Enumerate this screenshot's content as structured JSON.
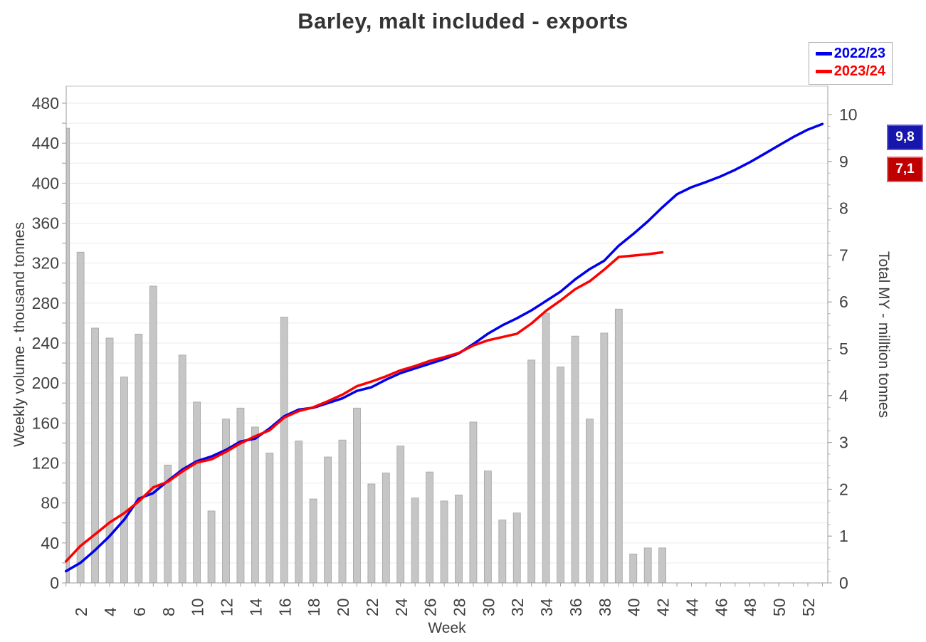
{
  "title": "Barley, malt included - exports",
  "badges": {
    "items": [
      {
        "series": "2022/23",
        "value": "9,8",
        "bg": "#1616AD",
        "border": "#5c5cd0"
      },
      {
        "series": "2023/24",
        "value": "7,1",
        "bg": "#C00000",
        "border": "#d96666"
      }
    ]
  },
  "chart_data": {
    "type": "combo-bar-line",
    "title": "Barley, malt included - exports",
    "x": {
      "label": "Week",
      "range": [
        1,
        53
      ],
      "tick_labels": [
        2,
        4,
        6,
        8,
        10,
        12,
        14,
        16,
        18,
        20,
        22,
        24,
        26,
        28,
        30,
        32,
        34,
        36,
        38,
        40,
        42,
        44,
        46,
        48,
        50,
        52
      ]
    },
    "left_axis": {
      "title": "Weekly volume - thousand tonnes",
      "min": 0,
      "max": 480,
      "label_step": 40,
      "grid_step": 20
    },
    "right_axis": {
      "title": "Total MY - milltion tonnes",
      "min": 0,
      "max": 10,
      "label_step": 1,
      "minor_tick_step": 0.25
    },
    "grid": "horizontal",
    "legend_position": "top-right",
    "bars": {
      "name": "2023/24 weekly volume",
      "axis": "left",
      "unit": "thousand tonnes",
      "color": "#c6c6c6",
      "border_color": "#a4a4a4",
      "start_week": 1,
      "values": [
        455,
        331,
        255,
        245,
        206,
        249,
        297,
        118,
        228,
        181,
        72,
        164,
        175,
        156,
        130,
        266,
        142,
        84,
        126,
        143,
        175,
        99,
        110,
        137,
        85,
        111,
        82,
        88,
        161,
        112,
        63,
        70,
        223,
        270,
        216,
        247,
        164,
        250,
        274,
        29,
        35,
        35
      ]
    },
    "lines": [
      {
        "name": "2022/23",
        "axis": "right",
        "unit": "million tonnes",
        "color": "#0000EE",
        "start_week": 1,
        "values": [
          0.25,
          0.43,
          0.7,
          1.0,
          1.35,
          1.8,
          1.92,
          2.18,
          2.42,
          2.6,
          2.7,
          2.84,
          3.02,
          3.08,
          3.3,
          3.56,
          3.7,
          3.74,
          3.84,
          3.94,
          4.1,
          4.18,
          4.34,
          4.48,
          4.58,
          4.68,
          4.78,
          4.9,
          5.1,
          5.32,
          5.5,
          5.65,
          5.82,
          6.02,
          6.22,
          6.48,
          6.7,
          6.88,
          7.2,
          7.45,
          7.72,
          8.02,
          8.3,
          8.45,
          8.56,
          8.68,
          8.82,
          8.98,
          9.16,
          9.34,
          9.52,
          9.68,
          9.8
        ]
      },
      {
        "name": "2023/24",
        "axis": "right",
        "unit": "million tonnes",
        "color": "#FF0000",
        "start_week": 1,
        "values": [
          0.46,
          0.79,
          1.04,
          1.29,
          1.49,
          1.74,
          2.04,
          2.16,
          2.38,
          2.57,
          2.64,
          2.8,
          2.98,
          3.13,
          3.26,
          3.53,
          3.67,
          3.75,
          3.88,
          4.02,
          4.2,
          4.3,
          4.41,
          4.54,
          4.63,
          4.74,
          4.82,
          4.91,
          5.07,
          5.18,
          5.25,
          5.32,
          5.54,
          5.81,
          6.03,
          6.27,
          6.44,
          6.69,
          6.96,
          6.99,
          7.02,
          7.06
        ]
      }
    ],
    "end_totals": {
      "2022/23": "9,8",
      "2023/24": "7,1"
    }
  }
}
